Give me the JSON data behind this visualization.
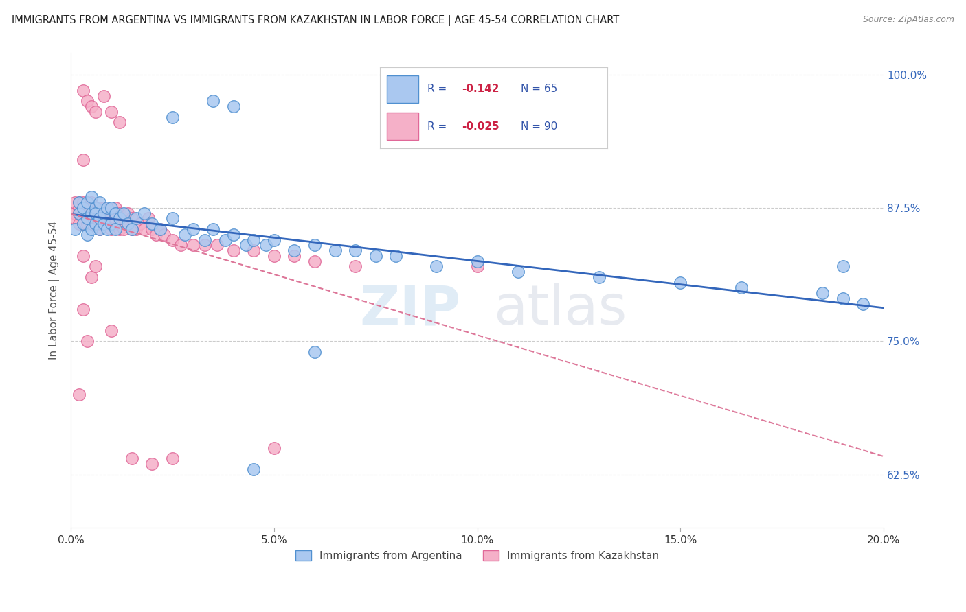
{
  "title": "IMMIGRANTS FROM ARGENTINA VS IMMIGRANTS FROM KAZAKHSTAN IN LABOR FORCE | AGE 45-54 CORRELATION CHART",
  "source": "Source: ZipAtlas.com",
  "ylabel": "In Labor Force | Age 45-54",
  "ytick_labels": [
    "62.5%",
    "75.0%",
    "87.5%",
    "100.0%"
  ],
  "ytick_vals": [
    0.625,
    0.75,
    0.875,
    1.0
  ],
  "legend_v1": "-0.142",
  "legend_n1": "N = 65",
  "legend_v2": "-0.025",
  "legend_n2": "N = 90",
  "argentina_color": "#aac8f0",
  "argentina_edge": "#5090d0",
  "kazakhstan_color": "#f5b0c8",
  "kazakhstan_edge": "#e06898",
  "line_argentina_color": "#3366bb",
  "line_kazakhstan_color": "#dd7799",
  "bg_color": "#ffffff",
  "grid_color": "#cccccc",
  "title_color": "#222222",
  "ylabel_color": "#555555",
  "right_tick_color": "#3366bb",
  "bottom_tick_color": "#333333",
  "argentina_x": [
    0.001,
    0.002,
    0.002,
    0.003,
    0.003,
    0.004,
    0.004,
    0.004,
    0.005,
    0.005,
    0.005,
    0.006,
    0.006,
    0.006,
    0.007,
    0.007,
    0.007,
    0.008,
    0.008,
    0.009,
    0.009,
    0.01,
    0.01,
    0.011,
    0.011,
    0.012,
    0.013,
    0.014,
    0.015,
    0.016,
    0.018,
    0.02,
    0.022,
    0.025,
    0.028,
    0.03,
    0.033,
    0.035,
    0.038,
    0.04,
    0.043,
    0.045,
    0.048,
    0.05,
    0.055,
    0.06,
    0.065,
    0.07,
    0.075,
    0.08,
    0.09,
    0.1,
    0.11,
    0.13,
    0.15,
    0.165,
    0.185,
    0.19,
    0.195,
    0.035,
    0.04,
    0.025,
    0.045,
    0.06,
    0.19
  ],
  "argentina_y": [
    0.855,
    0.87,
    0.88,
    0.86,
    0.875,
    0.85,
    0.865,
    0.88,
    0.855,
    0.87,
    0.885,
    0.86,
    0.875,
    0.87,
    0.855,
    0.865,
    0.88,
    0.86,
    0.87,
    0.855,
    0.875,
    0.86,
    0.875,
    0.87,
    0.855,
    0.865,
    0.87,
    0.86,
    0.855,
    0.865,
    0.87,
    0.86,
    0.855,
    0.865,
    0.85,
    0.855,
    0.845,
    0.855,
    0.845,
    0.85,
    0.84,
    0.845,
    0.84,
    0.845,
    0.835,
    0.84,
    0.835,
    0.835,
    0.83,
    0.83,
    0.82,
    0.825,
    0.815,
    0.81,
    0.805,
    0.8,
    0.795,
    0.79,
    0.785,
    0.975,
    0.97,
    0.96,
    0.63,
    0.74,
    0.82
  ],
  "kazakhstan_x": [
    0.001,
    0.001,
    0.001,
    0.002,
    0.002,
    0.002,
    0.002,
    0.003,
    0.003,
    0.003,
    0.003,
    0.003,
    0.004,
    0.004,
    0.004,
    0.004,
    0.005,
    0.005,
    0.005,
    0.005,
    0.005,
    0.006,
    0.006,
    0.006,
    0.006,
    0.007,
    0.007,
    0.007,
    0.007,
    0.008,
    0.008,
    0.008,
    0.008,
    0.009,
    0.009,
    0.009,
    0.01,
    0.01,
    0.01,
    0.011,
    0.011,
    0.011,
    0.012,
    0.012,
    0.012,
    0.013,
    0.013,
    0.014,
    0.014,
    0.015,
    0.015,
    0.016,
    0.017,
    0.018,
    0.019,
    0.02,
    0.021,
    0.022,
    0.023,
    0.025,
    0.027,
    0.03,
    0.033,
    0.036,
    0.04,
    0.045,
    0.05,
    0.055,
    0.06,
    0.07,
    0.003,
    0.004,
    0.005,
    0.006,
    0.008,
    0.01,
    0.012,
    0.015,
    0.002,
    0.003,
    0.02,
    0.025,
    0.01,
    0.003,
    0.004,
    0.005,
    0.006,
    0.05,
    0.1,
    0.003
  ],
  "kazakhstan_y": [
    0.87,
    0.88,
    0.865,
    0.875,
    0.86,
    0.88,
    0.87,
    0.865,
    0.875,
    0.86,
    0.87,
    0.88,
    0.865,
    0.875,
    0.86,
    0.87,
    0.86,
    0.87,
    0.88,
    0.865,
    0.875,
    0.86,
    0.875,
    0.865,
    0.87,
    0.855,
    0.865,
    0.875,
    0.86,
    0.87,
    0.86,
    0.875,
    0.865,
    0.86,
    0.87,
    0.875,
    0.865,
    0.855,
    0.87,
    0.86,
    0.875,
    0.865,
    0.855,
    0.86,
    0.87,
    0.855,
    0.865,
    0.86,
    0.87,
    0.855,
    0.865,
    0.855,
    0.86,
    0.855,
    0.865,
    0.855,
    0.85,
    0.855,
    0.85,
    0.845,
    0.84,
    0.84,
    0.84,
    0.84,
    0.835,
    0.835,
    0.83,
    0.83,
    0.825,
    0.82,
    0.985,
    0.975,
    0.97,
    0.965,
    0.98,
    0.965,
    0.955,
    0.64,
    0.7,
    0.92,
    0.635,
    0.64,
    0.76,
    0.83,
    0.75,
    0.81,
    0.82,
    0.65,
    0.82,
    0.78
  ]
}
